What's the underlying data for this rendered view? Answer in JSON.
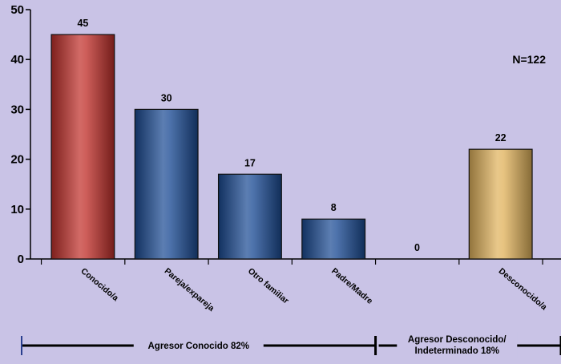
{
  "annotation": "N=122",
  "chart_data": {
    "type": "bar",
    "categories": [
      "Conocido/a",
      "Pareja/expareja",
      "Otro familiar",
      "Padre/Madre",
      "",
      "Desconocido/a"
    ],
    "values": [
      45,
      30,
      17,
      8,
      0,
      22
    ],
    "value_labels": [
      "45",
      "30",
      "17",
      "8",
      "0",
      "22"
    ],
    "bar_colors": [
      "#c0302b",
      "#1c4c94",
      "#1c4c94",
      "#1c4c94",
      "#1c4c94",
      "#e0b25c"
    ],
    "ylim": [
      0,
      50
    ],
    "yticks": [
      0,
      10,
      20,
      30,
      40,
      50
    ],
    "title": "",
    "xlabel": "",
    "ylabel": "",
    "grid": false,
    "groups": [
      {
        "label": "Agresor Conocido 82%",
        "lines": [
          "Agresor Conocido 82%"
        ],
        "from": 0,
        "to": 4
      },
      {
        "label": "Agresor Desconocido/ Indeterminado  18%",
        "lines": [
          "Agresor Desconocido/",
          "Indeterminado  18%"
        ],
        "from": 4,
        "to": 6
      }
    ]
  }
}
